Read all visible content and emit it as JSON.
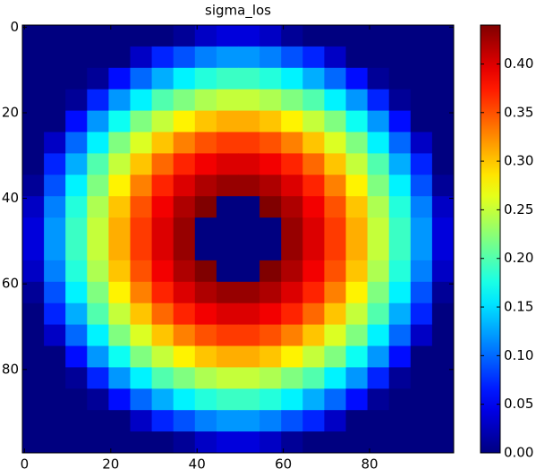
{
  "chart_data": {
    "type": "heatmap",
    "title": "sigma_los",
    "colormap": "jet",
    "extent": [
      -0.5,
      99.5,
      99.5,
      -0.5
    ],
    "xlim": [
      -0.5,
      99.5
    ],
    "ylim": [
      99.5,
      -0.5
    ],
    "xticks": [
      0,
      20,
      40,
      60,
      80
    ],
    "yticks": [
      0,
      20,
      40,
      60,
      80
    ],
    "clim": [
      0,
      0.44
    ],
    "cticks": [
      {
        "value": 0,
        "label": "0.00"
      },
      {
        "value": 0.05,
        "label": "0.05"
      },
      {
        "value": 0.1,
        "label": "0.10"
      },
      {
        "value": 0.15,
        "label": "0.15"
      },
      {
        "value": 0.2,
        "label": "0.20"
      },
      {
        "value": 0.25,
        "label": "0.25"
      },
      {
        "value": 0.3,
        "label": "0.30"
      },
      {
        "value": 0.35,
        "label": "0.35"
      },
      {
        "value": 0.4,
        "label": "0.40"
      }
    ],
    "z": [
      [
        0,
        0,
        0,
        0,
        0,
        0,
        0,
        0.01,
        0.03,
        0.04,
        0.04,
        0.03,
        0.01,
        0,
        0,
        0,
        0,
        0,
        0,
        0
      ],
      [
        0,
        0,
        0,
        0,
        0,
        0.03,
        0.07,
        0.09,
        0.11,
        0.12,
        0.12,
        0.11,
        0.09,
        0.07,
        0.03,
        0,
        0,
        0,
        0,
        0
      ],
      [
        0,
        0,
        0,
        0.01,
        0.06,
        0.1,
        0.13,
        0.16,
        0.18,
        0.19,
        0.19,
        0.18,
        0.16,
        0.13,
        0.1,
        0.06,
        0.01,
        0,
        0,
        0
      ],
      [
        0,
        0,
        0.01,
        0.07,
        0.12,
        0.16,
        0.2,
        0.22,
        0.24,
        0.25,
        0.25,
        0.24,
        0.22,
        0.2,
        0.16,
        0.12,
        0.07,
        0.01,
        0,
        0
      ],
      [
        0,
        0,
        0.06,
        0.12,
        0.17,
        0.22,
        0.25,
        0.28,
        0.3,
        0.31,
        0.31,
        0.3,
        0.28,
        0.25,
        0.22,
        0.17,
        0.12,
        0.06,
        0,
        0
      ],
      [
        0,
        0.03,
        0.1,
        0.16,
        0.22,
        0.26,
        0.3,
        0.33,
        0.35,
        0.36,
        0.36,
        0.35,
        0.33,
        0.3,
        0.26,
        0.22,
        0.16,
        0.1,
        0.03,
        0
      ],
      [
        0,
        0.07,
        0.13,
        0.2,
        0.25,
        0.3,
        0.34,
        0.37,
        0.39,
        0.4,
        0.4,
        0.39,
        0.37,
        0.34,
        0.3,
        0.25,
        0.2,
        0.13,
        0.07,
        0
      ],
      [
        0.01,
        0.09,
        0.16,
        0.22,
        0.28,
        0.33,
        0.37,
        0.4,
        0.42,
        0.43,
        0.43,
        0.42,
        0.4,
        0.37,
        0.33,
        0.28,
        0.22,
        0.16,
        0.09,
        0.01
      ],
      [
        0.03,
        0.11,
        0.18,
        0.24,
        0.3,
        0.35,
        0.39,
        0.42,
        0.44,
        0,
        0,
        0.44,
        0.42,
        0.39,
        0.35,
        0.3,
        0.24,
        0.18,
        0.11,
        0.03
      ],
      [
        0.04,
        0.12,
        0.19,
        0.25,
        0.31,
        0.36,
        0.4,
        0.43,
        0,
        0,
        0,
        0,
        0.43,
        0.4,
        0.36,
        0.31,
        0.25,
        0.19,
        0.12,
        0.04
      ],
      [
        0.04,
        0.12,
        0.19,
        0.25,
        0.31,
        0.36,
        0.4,
        0.43,
        0,
        0,
        0,
        0,
        0.43,
        0.4,
        0.36,
        0.31,
        0.25,
        0.19,
        0.12,
        0.04
      ],
      [
        0.03,
        0.11,
        0.18,
        0.24,
        0.3,
        0.35,
        0.39,
        0.42,
        0.44,
        0,
        0,
        0.44,
        0.42,
        0.39,
        0.35,
        0.3,
        0.24,
        0.18,
        0.11,
        0.03
      ],
      [
        0.01,
        0.09,
        0.16,
        0.22,
        0.28,
        0.33,
        0.37,
        0.4,
        0.42,
        0.43,
        0.43,
        0.42,
        0.4,
        0.37,
        0.33,
        0.28,
        0.22,
        0.16,
        0.09,
        0.01
      ],
      [
        0,
        0.07,
        0.13,
        0.2,
        0.25,
        0.3,
        0.34,
        0.37,
        0.39,
        0.4,
        0.4,
        0.39,
        0.37,
        0.34,
        0.3,
        0.25,
        0.2,
        0.13,
        0.07,
        0
      ],
      [
        0,
        0.03,
        0.1,
        0.16,
        0.22,
        0.26,
        0.3,
        0.33,
        0.35,
        0.36,
        0.36,
        0.35,
        0.33,
        0.3,
        0.26,
        0.22,
        0.16,
        0.1,
        0.03,
        0
      ],
      [
        0,
        0,
        0.06,
        0.12,
        0.17,
        0.22,
        0.25,
        0.28,
        0.3,
        0.31,
        0.31,
        0.3,
        0.28,
        0.25,
        0.22,
        0.17,
        0.12,
        0.06,
        0,
        0
      ],
      [
        0,
        0,
        0.01,
        0.07,
        0.12,
        0.16,
        0.2,
        0.22,
        0.24,
        0.25,
        0.25,
        0.24,
        0.22,
        0.2,
        0.16,
        0.12,
        0.07,
        0.01,
        0,
        0
      ],
      [
        0,
        0,
        0,
        0.01,
        0.06,
        0.1,
        0.13,
        0.16,
        0.18,
        0.19,
        0.19,
        0.18,
        0.16,
        0.13,
        0.1,
        0.06,
        0.01,
        0,
        0,
        0
      ],
      [
        0,
        0,
        0,
        0,
        0,
        0.03,
        0.07,
        0.09,
        0.11,
        0.12,
        0.12,
        0.11,
        0.09,
        0.07,
        0.03,
        0,
        0,
        0,
        0,
        0
      ],
      [
        0,
        0,
        0,
        0,
        0,
        0,
        0,
        0.01,
        0.03,
        0.04,
        0.04,
        0.03,
        0.01,
        0,
        0,
        0,
        0,
        0,
        0,
        0
      ]
    ]
  }
}
